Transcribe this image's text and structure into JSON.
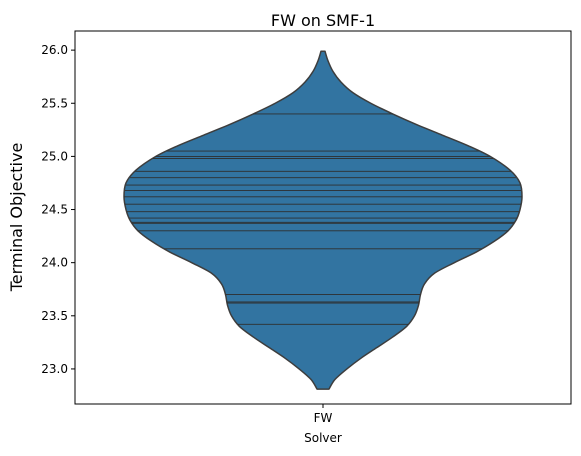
{
  "chart_data": {
    "type": "violin",
    "title": "FW on SMF-1",
    "xlabel": "Solver",
    "ylabel": "Terminal Objective",
    "categories": [
      "FW"
    ],
    "ylim": [
      22.67,
      26.18
    ],
    "yticks": [
      23.0,
      23.5,
      24.0,
      24.5,
      25.0,
      25.5,
      26.0
    ],
    "ytick_labels": [
      "23.0",
      "23.5",
      "24.0",
      "24.5",
      "25.0",
      "25.5",
      "26.0"
    ],
    "grid": false,
    "legend": "none",
    "series": [
      {
        "category": "FW",
        "observations": [
          23.42,
          23.62,
          23.63,
          23.7,
          24.13,
          24.3,
          24.37,
          24.38,
          24.42,
          24.48,
          24.55,
          24.62,
          24.68,
          24.73,
          24.8,
          24.86,
          24.98,
          25.0,
          25.05,
          25.4
        ],
        "min": 22.81,
        "max": 25.99,
        "density_profile": [
          {
            "y": 22.81,
            "w": 0.03
          },
          {
            "y": 22.9,
            "w": 0.06
          },
          {
            "y": 23.0,
            "w": 0.12
          },
          {
            "y": 23.1,
            "w": 0.19
          },
          {
            "y": 23.2,
            "w": 0.27
          },
          {
            "y": 23.3,
            "w": 0.35
          },
          {
            "y": 23.4,
            "w": 0.42
          },
          {
            "y": 23.5,
            "w": 0.46
          },
          {
            "y": 23.6,
            "w": 0.48
          },
          {
            "y": 23.7,
            "w": 0.49
          },
          {
            "y": 23.8,
            "w": 0.51
          },
          {
            "y": 23.9,
            "w": 0.56
          },
          {
            "y": 24.0,
            "w": 0.66
          },
          {
            "y": 24.1,
            "w": 0.77
          },
          {
            "y": 24.2,
            "w": 0.86
          },
          {
            "y": 24.3,
            "w": 0.93
          },
          {
            "y": 24.4,
            "w": 0.97
          },
          {
            "y": 24.5,
            "w": 0.99
          },
          {
            "y": 24.62,
            "w": 1.0
          },
          {
            "y": 24.75,
            "w": 0.99
          },
          {
            "y": 24.87,
            "w": 0.94
          },
          {
            "y": 25.0,
            "w": 0.84
          },
          {
            "y": 25.1,
            "w": 0.73
          },
          {
            "y": 25.2,
            "w": 0.6
          },
          {
            "y": 25.3,
            "w": 0.47
          },
          {
            "y": 25.4,
            "w": 0.35
          },
          {
            "y": 25.5,
            "w": 0.24
          },
          {
            "y": 25.6,
            "w": 0.15
          },
          {
            "y": 25.7,
            "w": 0.09
          },
          {
            "y": 25.8,
            "w": 0.05
          },
          {
            "y": 25.9,
            "w": 0.025
          },
          {
            "y": 25.99,
            "w": 0.01
          }
        ]
      }
    ],
    "colors": {
      "fill": "#3274a1",
      "outline": "#3d3d3d",
      "stick": "#2e2e2e"
    }
  }
}
